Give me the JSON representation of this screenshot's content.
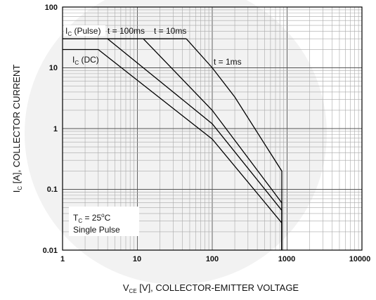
{
  "chart_data": {
    "type": "line",
    "x_scale": "log",
    "y_scale": "log",
    "xlim": [
      1,
      10000
    ],
    "ylim": [
      0.01,
      100
    ],
    "x_ticks": [
      "1",
      "10",
      "100",
      "1000",
      "10000"
    ],
    "y_ticks": [
      "100",
      "10",
      "1",
      "0.1",
      "0.01"
    ],
    "grid": true,
    "xlabel": {
      "main": "V",
      "sub": "CE",
      "rest": " [V], COLLECTOR-EMITTER VOLTAGE"
    },
    "ylabel": {
      "main": "I",
      "sub": "C",
      "rest": " [A], COLLECTOR CURRENT"
    },
    "series": [
      {
        "key": "pulse_1ms",
        "points": [
          [
            45,
            30
          ],
          [
            100,
            10
          ],
          [
            200,
            3.3
          ],
          [
            850,
            0.2
          ],
          [
            850,
            0.01
          ]
        ]
      },
      {
        "key": "pulse_10ms",
        "points": [
          [
            12,
            30
          ],
          [
            100,
            2
          ],
          [
            850,
            0.06
          ],
          [
            850,
            0.01
          ]
        ]
      },
      {
        "key": "pulse_100ms",
        "points": [
          [
            4,
            30
          ],
          [
            100,
            1.2
          ],
          [
            850,
            0.045
          ],
          [
            850,
            0.01
          ]
        ]
      },
      {
        "key": "dc",
        "points": [
          [
            1,
            20
          ],
          [
            3,
            20
          ],
          [
            100,
            0.67
          ],
          [
            850,
            0.028
          ],
          [
            850,
            0.01
          ]
        ]
      },
      {
        "key": "pulse_limit",
        "points": [
          [
            1,
            30
          ],
          [
            45,
            30
          ]
        ]
      }
    ],
    "annotations": {
      "ic_pulse": {
        "main": "I",
        "sub": "C",
        "rest": " (Pulse)"
      },
      "t100": "t = 100ms",
      "t10": "t = 10ms",
      "t1": "t = 1ms",
      "ic_dc": {
        "main": "I",
        "sub": "C",
        "rest": " (DC)"
      },
      "tc": {
        "main": "T",
        "sub": "C",
        "rest": " = 25",
        "sup": "o",
        "tail": "C"
      },
      "single": "Single Pulse"
    }
  },
  "colors": {
    "line": "#000000",
    "grid": "#a9a9a9",
    "frame": "#000000",
    "watermark": "#f2f2f2"
  }
}
